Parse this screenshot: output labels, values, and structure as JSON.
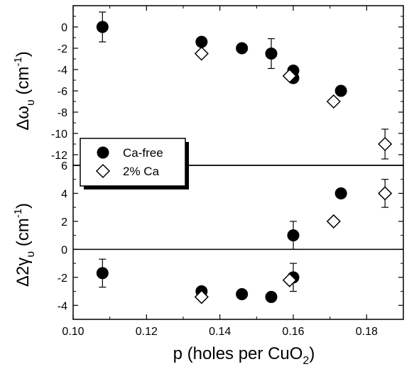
{
  "chart_data": {
    "type": "scatter",
    "x_axis": {
      "label": "p (holes per CuO",
      "label_sub": "2",
      "label_close": ")",
      "range": [
        0.1,
        0.19
      ],
      "ticks": [
        "0.10",
        "0.12",
        "0.14",
        "0.16",
        "0.18"
      ]
    },
    "panels": [
      {
        "id": "top",
        "ylabel_main": "Δω",
        "ylabel_sub": "υ",
        "ylabel_unit": " (cm",
        "ylabel_sup": "-1",
        "ylabel_close": ")",
        "ylim": [
          -13,
          2
        ],
        "ticks": [
          "0",
          "-2",
          "-4",
          "-6",
          "-8",
          "-10",
          "-12"
        ],
        "zero_line": false,
        "series": [
          {
            "name": "Ca-free",
            "marker": "filled-circle",
            "points": [
              {
                "x": 0.108,
                "y": 0.0,
                "err": 1.4
              },
              {
                "x": 0.135,
                "y": -1.4
              },
              {
                "x": 0.146,
                "y": -2.0
              },
              {
                "x": 0.154,
                "y": -2.5,
                "err": 1.4
              },
              {
                "x": 0.16,
                "y": -4.1
              },
              {
                "x": 0.16,
                "y": -4.8
              },
              {
                "x": 0.173,
                "y": -6.0
              }
            ]
          },
          {
            "name": "2% Ca",
            "marker": "open-diamond",
            "points": [
              {
                "x": 0.135,
                "y": -2.5
              },
              {
                "x": 0.159,
                "y": -4.6
              },
              {
                "x": 0.171,
                "y": -7.0
              },
              {
                "x": 0.185,
                "y": -11.0,
                "err": 1.4
              }
            ]
          }
        ]
      },
      {
        "id": "bottom",
        "ylabel_main": "Δ2γ",
        "ylabel_sub": "υ",
        "ylabel_unit": " (cm",
        "ylabel_sup": "-1",
        "ylabel_close": ")",
        "ylim": [
          -5,
          6
        ],
        "ticks": [
          "6",
          "4",
          "2",
          "0",
          "-2",
          "-4"
        ],
        "zero_line": true,
        "series": [
          {
            "name": "Ca-free",
            "marker": "filled-circle",
            "points": [
              {
                "x": 0.108,
                "y": -1.7,
                "err": 1.0
              },
              {
                "x": 0.135,
                "y": -3.0
              },
              {
                "x": 0.146,
                "y": -3.2
              },
              {
                "x": 0.154,
                "y": -3.4
              },
              {
                "x": 0.16,
                "y": 1.0,
                "err": 1.0
              },
              {
                "x": 0.16,
                "y": -2.0,
                "err": 1.0
              },
              {
                "x": 0.173,
                "y": 4.0
              }
            ]
          },
          {
            "name": "2% Ca",
            "marker": "open-diamond",
            "points": [
              {
                "x": 0.135,
                "y": -3.4
              },
              {
                "x": 0.159,
                "y": -2.2
              },
              {
                "x": 0.171,
                "y": 2.0
              },
              {
                "x": 0.185,
                "y": 4.0,
                "err": 1.0
              }
            ]
          }
        ]
      }
    ],
    "legend": {
      "placement": "lower-left of top panel",
      "entries": [
        {
          "label": "Ca-free",
          "marker": "filled-circle"
        },
        {
          "label": "2% Ca",
          "marker": "open-diamond"
        }
      ]
    }
  }
}
